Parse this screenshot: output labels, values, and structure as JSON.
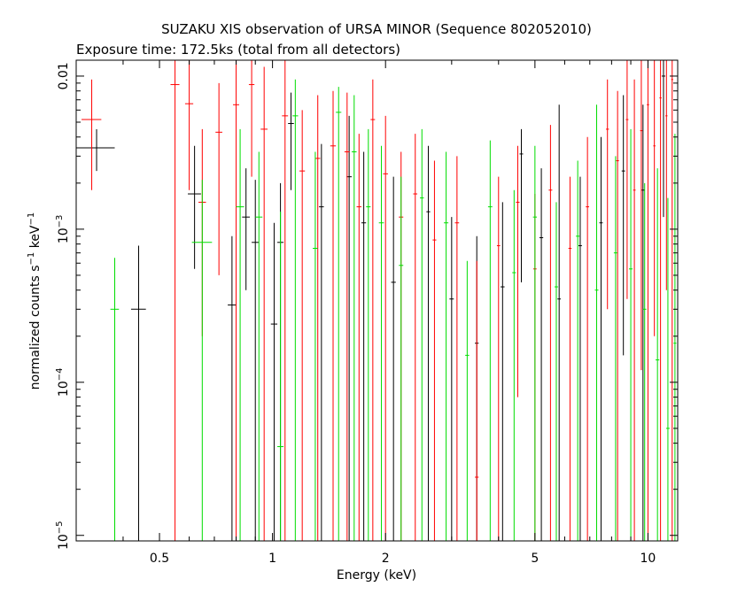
{
  "chart_data": {
    "type": "scatter",
    "title": "SUZAKU XIS observation of URSA MINOR (Sequence 802052010)",
    "subtitle": "Exposure time: 172.5ks (total from all detectors)",
    "xlabel": "Energy (keV)",
    "ylabel": {
      "base": "normalized counts s",
      "exp1": "−1",
      "mid": " keV",
      "exp2": "−1"
    },
    "x_scale": "log",
    "y_scale": "log",
    "xlim": [
      0.3,
      12.0
    ],
    "ylim": [
      9.2e-06,
      0.0127
    ],
    "x_ticks": [
      {
        "value": 0.5,
        "label": "0.5"
      },
      {
        "value": 1,
        "label": "1"
      },
      {
        "value": 2,
        "label": "2"
      },
      {
        "value": 5,
        "label": "5"
      },
      {
        "value": 10,
        "label": "10"
      }
    ],
    "y_ticks": [
      {
        "value": 1e-05,
        "base": "10",
        "exp": "−5"
      },
      {
        "value": 0.0001,
        "base": "10",
        "exp": "−4"
      },
      {
        "value": 0.001,
        "base": "10",
        "exp": "−3"
      },
      {
        "value": 0.01,
        "base": "0.01",
        "exp": ""
      }
    ],
    "grid": false,
    "series": [
      {
        "color": "#000000",
        "points": [
          {
            "x": 0.34,
            "xerr": 0.04,
            "y": 0.0034,
            "ylo": 0.0024,
            "yhi": 0.0045
          },
          {
            "x": 0.44,
            "xerr": 0.02,
            "y": 0.0003,
            "ylo": 9.2e-06,
            "yhi": 0.00078
          },
          {
            "x": 0.62,
            "xerr": 0.025,
            "y": 0.0017,
            "ylo": 0.00055,
            "yhi": 0.0035
          },
          {
            "x": 0.78,
            "xerr": 0.02,
            "y": 0.00032,
            "ylo": 9.2e-06,
            "yhi": 0.0009
          },
          {
            "x": 0.85,
            "xerr": 0.02,
            "y": 0.0012,
            "ylo": 0.0004,
            "yhi": 0.0025
          },
          {
            "x": 0.9,
            "xerr": 0.02,
            "y": 0.00082,
            "ylo": 9.2e-06,
            "yhi": 0.0021
          },
          {
            "x": 1.01,
            "xerr": 0.02,
            "y": 0.00024,
            "ylo": 9.2e-06,
            "yhi": 0.0011
          },
          {
            "x": 1.05,
            "xerr": 0.02,
            "y": 0.00082,
            "ylo": 9.2e-06,
            "yhi": 0.002
          },
          {
            "x": 1.12,
            "xerr": 0.02,
            "y": 0.0049,
            "ylo": 0.0018,
            "yhi": 0.0078
          },
          {
            "x": 1.35,
            "xerr": 0.02,
            "y": 0.0014,
            "ylo": 9.2e-06,
            "yhi": 0.0036
          },
          {
            "x": 1.6,
            "xerr": 0.025,
            "y": 0.0022,
            "ylo": 9.2e-06,
            "yhi": 0.0055
          },
          {
            "x": 1.75,
            "xerr": 0.025,
            "y": 0.0011,
            "ylo": 9.2e-06,
            "yhi": 0.0032
          },
          {
            "x": 2.1,
            "xerr": 0.03,
            "y": 0.00045,
            "ylo": 9.2e-06,
            "yhi": 0.0022
          },
          {
            "x": 2.6,
            "xerr": 0.03,
            "y": 0.0013,
            "ylo": 9.2e-06,
            "yhi": 0.0035
          },
          {
            "x": 3.0,
            "xerr": 0.04,
            "y": 0.00035,
            "ylo": 9.2e-06,
            "yhi": 0.0012
          },
          {
            "x": 3.5,
            "xerr": 0.04,
            "y": 0.00018,
            "ylo": 9.2e-06,
            "yhi": 0.0009
          },
          {
            "x": 4.1,
            "xerr": 0.05,
            "y": 0.00042,
            "ylo": 9.2e-06,
            "yhi": 0.0015
          },
          {
            "x": 4.6,
            "xerr": 0.05,
            "y": 0.0031,
            "ylo": 0.00045,
            "yhi": 0.0045
          },
          {
            "x": 5.2,
            "xerr": 0.06,
            "y": 0.00088,
            "ylo": 9.2e-06,
            "yhi": 0.0025
          },
          {
            "x": 5.8,
            "xerr": 0.06,
            "y": 0.00035,
            "ylo": 9.2e-06,
            "yhi": 0.0065
          },
          {
            "x": 6.6,
            "xerr": 0.07,
            "y": 0.00078,
            "ylo": 9.2e-06,
            "yhi": 0.0022
          },
          {
            "x": 7.5,
            "xerr": 0.08,
            "y": 0.0011,
            "ylo": 9.2e-06,
            "yhi": 0.004
          },
          {
            "x": 8.6,
            "xerr": 0.09,
            "y": 0.0024,
            "ylo": 0.00015,
            "yhi": 0.0075
          },
          {
            "x": 9.7,
            "xerr": 0.1,
            "y": 0.0018,
            "ylo": 9.2e-06,
            "yhi": 0.0065
          },
          {
            "x": 11.0,
            "xerr": 0.12,
            "y": 0.01,
            "ylo": 0.0012,
            "yhi": 0.0127
          }
        ]
      },
      {
        "color": "#ff0000",
        "points": [
          {
            "x": 0.33,
            "xerr": 0.02,
            "y": 0.0052,
            "ylo": 0.0018,
            "yhi": 0.0095
          },
          {
            "x": 0.55,
            "xerr": 0.015,
            "y": 0.0088,
            "ylo": 9.2e-06,
            "yhi": 0.0127
          },
          {
            "x": 0.6,
            "xerr": 0.015,
            "y": 0.0066,
            "ylo": 0.0018,
            "yhi": 0.0127
          },
          {
            "x": 0.65,
            "xerr": 0.015,
            "y": 0.0015,
            "ylo": 0.0002,
            "yhi": 0.0045
          },
          {
            "x": 0.72,
            "xerr": 0.015,
            "y": 0.0043,
            "ylo": 0.0005,
            "yhi": 0.009
          },
          {
            "x": 0.8,
            "xerr": 0.015,
            "y": 0.0065,
            "ylo": 9.2e-06,
            "yhi": 0.0127
          },
          {
            "x": 0.88,
            "xerr": 0.015,
            "y": 0.0088,
            "ylo": 0.0022,
            "yhi": 0.0127
          },
          {
            "x": 0.95,
            "xerr": 0.02,
            "y": 0.0045,
            "ylo": 9.2e-06,
            "yhi": 0.0115
          },
          {
            "x": 1.08,
            "xerr": 0.02,
            "y": 0.0055,
            "ylo": 9.2e-06,
            "yhi": 0.0127
          },
          {
            "x": 1.2,
            "xerr": 0.02,
            "y": 0.0024,
            "ylo": 9.2e-06,
            "yhi": 0.006
          },
          {
            "x": 1.32,
            "xerr": 0.02,
            "y": 0.0029,
            "ylo": 9.2e-06,
            "yhi": 0.0075
          },
          {
            "x": 1.45,
            "xerr": 0.025,
            "y": 0.0035,
            "ylo": 9.2e-06,
            "yhi": 0.008
          },
          {
            "x": 1.58,
            "xerr": 0.025,
            "y": 0.0032,
            "ylo": 9.2e-06,
            "yhi": 0.0078
          },
          {
            "x": 1.7,
            "xerr": 0.025,
            "y": 0.0014,
            "ylo": 9.2e-06,
            "yhi": 0.0042
          },
          {
            "x": 1.85,
            "xerr": 0.025,
            "y": 0.0052,
            "ylo": 9.2e-06,
            "yhi": 0.0095
          },
          {
            "x": 2.0,
            "xerr": 0.03,
            "y": 0.0023,
            "ylo": 9.2e-06,
            "yhi": 0.0055
          },
          {
            "x": 2.2,
            "xerr": 0.03,
            "y": 0.0012,
            "ylo": 9.2e-06,
            "yhi": 0.0032
          },
          {
            "x": 2.4,
            "xerr": 0.03,
            "y": 0.0017,
            "ylo": 9.2e-06,
            "yhi": 0.0042
          },
          {
            "x": 2.7,
            "xerr": 0.03,
            "y": 0.00085,
            "ylo": 9.2e-06,
            "yhi": 0.0028
          },
          {
            "x": 3.1,
            "xerr": 0.04,
            "y": 0.0011,
            "ylo": 9.2e-06,
            "yhi": 0.003
          },
          {
            "x": 3.5,
            "xerr": 0.04,
            "y": 2.4e-05,
            "ylo": 9.2e-06,
            "yhi": 0.00062
          },
          {
            "x": 4.0,
            "xerr": 0.04,
            "y": 0.00078,
            "ylo": 9.2e-06,
            "yhi": 0.0022
          },
          {
            "x": 4.5,
            "xerr": 0.05,
            "y": 0.0015,
            "ylo": 8e-05,
            "yhi": 0.0035
          },
          {
            "x": 5.0,
            "xerr": 0.05,
            "y": 0.00055,
            "ylo": 9.2e-06,
            "yhi": 0.0017
          },
          {
            "x": 5.5,
            "xerr": 0.06,
            "y": 0.0018,
            "ylo": 9.2e-06,
            "yhi": 0.0048
          },
          {
            "x": 6.2,
            "xerr": 0.06,
            "y": 0.00075,
            "ylo": 9.2e-06,
            "yhi": 0.0022
          },
          {
            "x": 6.9,
            "xerr": 0.07,
            "y": 0.0014,
            "ylo": 9.2e-06,
            "yhi": 0.004
          },
          {
            "x": 7.8,
            "xerr": 0.07,
            "y": 0.0045,
            "ylo": 0.0003,
            "yhi": 0.0095
          },
          {
            "x": 8.3,
            "xerr": 0.07,
            "y": 0.0028,
            "ylo": 9.2e-06,
            "yhi": 0.008
          },
          {
            "x": 8.8,
            "xerr": 0.07,
            "y": 0.0052,
            "ylo": 0.00035,
            "yhi": 0.0127
          },
          {
            "x": 9.2,
            "xerr": 0.07,
            "y": 0.0018,
            "ylo": 9.2e-06,
            "yhi": 0.0095
          },
          {
            "x": 9.6,
            "xerr": 0.07,
            "y": 0.0044,
            "ylo": 0.00012,
            "yhi": 0.0127
          },
          {
            "x": 10.0,
            "xerr": 0.07,
            "y": 0.0065,
            "ylo": 9.2e-06,
            "yhi": 0.0127
          },
          {
            "x": 10.4,
            "xerr": 0.07,
            "y": 0.0035,
            "ylo": 0.0002,
            "yhi": 0.0127
          },
          {
            "x": 10.8,
            "xerr": 0.07,
            "y": 0.0072,
            "ylo": 9.2e-06,
            "yhi": 0.0127
          },
          {
            "x": 11.2,
            "xerr": 0.07,
            "y": 0.0055,
            "ylo": 0.0004,
            "yhi": 0.0127
          },
          {
            "x": 11.6,
            "xerr": 0.07,
            "y": 0.0095,
            "ylo": 9.2e-06,
            "yhi": 0.0127
          }
        ]
      },
      {
        "color": "#00dd00",
        "points": [
          {
            "x": 0.38,
            "xerr": 0.01,
            "y": 0.0003,
            "ylo": 9.2e-06,
            "yhi": 0.00065
          },
          {
            "x": 0.65,
            "xerr": 0.04,
            "y": 0.00082,
            "ylo": 9.2e-06,
            "yhi": 0.0021
          },
          {
            "x": 0.82,
            "xerr": 0.02,
            "y": 0.0014,
            "ylo": 9.2e-06,
            "yhi": 0.0045
          },
          {
            "x": 0.92,
            "xerr": 0.02,
            "y": 0.0012,
            "ylo": 9.2e-06,
            "yhi": 0.0032
          },
          {
            "x": 1.05,
            "xerr": 0.02,
            "y": 3.8e-05,
            "ylo": 9.2e-06,
            "yhi": 0.0013
          },
          {
            "x": 1.15,
            "xerr": 0.02,
            "y": 0.0055,
            "ylo": 9.2e-06,
            "yhi": 0.0095
          },
          {
            "x": 1.3,
            "xerr": 0.02,
            "y": 0.00075,
            "ylo": 9.2e-06,
            "yhi": 0.0032
          },
          {
            "x": 1.5,
            "xerr": 0.025,
            "y": 0.0058,
            "ylo": 9.2e-06,
            "yhi": 0.0085
          },
          {
            "x": 1.65,
            "xerr": 0.025,
            "y": 0.0032,
            "ylo": 9.2e-06,
            "yhi": 0.0075
          },
          {
            "x": 1.8,
            "xerr": 0.025,
            "y": 0.0014,
            "ylo": 9.2e-06,
            "yhi": 0.0045
          },
          {
            "x": 1.95,
            "xerr": 0.03,
            "y": 0.0011,
            "ylo": 9.2e-06,
            "yhi": 0.0035
          },
          {
            "x": 2.2,
            "xerr": 0.03,
            "y": 0.00058,
            "ylo": 9.2e-06,
            "yhi": 0.0022
          },
          {
            "x": 2.5,
            "xerr": 0.03,
            "y": 0.0016,
            "ylo": 9.2e-06,
            "yhi": 0.0045
          },
          {
            "x": 2.9,
            "xerr": 0.04,
            "y": 0.0011,
            "ylo": 9.2e-06,
            "yhi": 0.0032
          },
          {
            "x": 3.3,
            "xerr": 0.04,
            "y": 0.00015,
            "ylo": 9.2e-06,
            "yhi": 0.00062
          },
          {
            "x": 3.8,
            "xerr": 0.05,
            "y": 0.0014,
            "ylo": 9.2e-06,
            "yhi": 0.0038
          },
          {
            "x": 4.4,
            "xerr": 0.05,
            "y": 0.00052,
            "ylo": 9.2e-06,
            "yhi": 0.0018
          },
          {
            "x": 5.0,
            "xerr": 0.06,
            "y": 0.0012,
            "ylo": 9.2e-06,
            "yhi": 0.0035
          },
          {
            "x": 5.7,
            "xerr": 0.06,
            "y": 0.00042,
            "ylo": 9.2e-06,
            "yhi": 0.0015
          },
          {
            "x": 6.5,
            "xerr": 0.07,
            "y": 0.0009,
            "ylo": 9.2e-06,
            "yhi": 0.0028
          },
          {
            "x": 7.3,
            "xerr": 0.08,
            "y": 0.0004,
            "ylo": 9.2e-06,
            "yhi": 0.0065
          },
          {
            "x": 8.2,
            "xerr": 0.09,
            "y": 0.0007,
            "ylo": 9.2e-06,
            "yhi": 0.003
          },
          {
            "x": 9.0,
            "xerr": 0.1,
            "y": 0.00055,
            "ylo": 9.2e-06,
            "yhi": 0.0045
          },
          {
            "x": 9.8,
            "xerr": 0.1,
            "y": 0.0003,
            "ylo": 9.2e-06,
            "yhi": 0.002
          },
          {
            "x": 10.6,
            "xerr": 0.12,
            "y": 0.00014,
            "ylo": 9.2e-06,
            "yhi": 0.0025
          },
          {
            "x": 11.3,
            "xerr": 0.12,
            "y": 5e-05,
            "ylo": 9.2e-06,
            "yhi": 0.0016
          },
          {
            "x": 11.8,
            "xerr": 0.1,
            "y": 0.00018,
            "ylo": 9.2e-06,
            "yhi": 0.0042
          }
        ]
      }
    ]
  }
}
